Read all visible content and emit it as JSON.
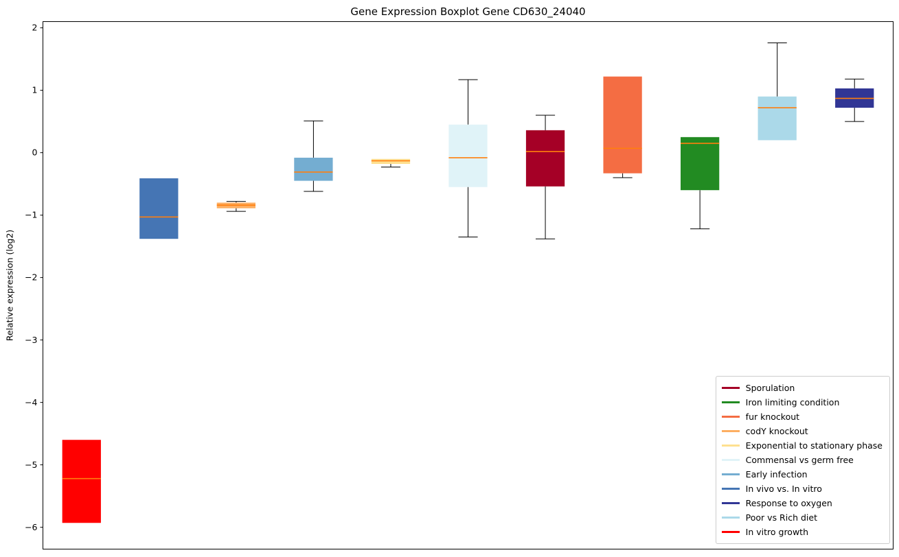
{
  "chart_data": {
    "type": "boxplot",
    "title": "Gene Expression Boxplot Gene CD630_24040",
    "ylabel": "Relative expression (log2)",
    "xlabel": "",
    "ylim": [
      -6.35,
      2.1
    ],
    "yticks": [
      2,
      1,
      0,
      -1,
      -2,
      -3,
      -4,
      -5,
      -6
    ],
    "grid": false,
    "median_color": "#ff7f0e",
    "whisker_color": "#000000",
    "series": [
      {
        "name": "In vitro growth",
        "color": "#ff0000",
        "whislo": -5.93,
        "q1": -5.93,
        "med": -5.22,
        "q3": -4.6,
        "whishi": -4.6
      },
      {
        "name": "In vivo vs. In vitro",
        "color": "#4575b4",
        "whislo": -1.38,
        "q1": -1.38,
        "med": -1.03,
        "q3": -0.41,
        "whishi": -0.41
      },
      {
        "name": "codY knockout",
        "color": "#fdae61",
        "whislo": -0.94,
        "q1": -0.89,
        "med": -0.84,
        "q3": -0.8,
        "whishi": -0.78
      },
      {
        "name": "Early infection",
        "color": "#74add1",
        "whislo": -0.62,
        "q1": -0.45,
        "med": -0.31,
        "q3": -0.08,
        "whishi": 0.51
      },
      {
        "name": "Exponential to stationary phase",
        "color": "#fee090",
        "whislo": -0.23,
        "q1": -0.18,
        "med": -0.13,
        "q3": -0.1,
        "whishi": -0.1
      },
      {
        "name": "Commensal vs germ free",
        "color": "#e0f3f8",
        "whislo": -1.35,
        "q1": -0.55,
        "med": -0.08,
        "q3": 0.45,
        "whishi": 1.17
      },
      {
        "name": "Sporulation",
        "color": "#a50026",
        "whislo": -1.38,
        "q1": -0.54,
        "med": 0.02,
        "q3": 0.36,
        "whishi": 0.6
      },
      {
        "name": "fur knockout",
        "color": "#f46d43",
        "whislo": -0.4,
        "q1": -0.33,
        "med": 0.07,
        "q3": 1.22,
        "whishi": 1.22
      },
      {
        "name": "Iron limiting condition",
        "color": "#228b22",
        "whislo": -1.22,
        "q1": -0.6,
        "med": 0.15,
        "q3": 0.25,
        "whishi": 0.25
      },
      {
        "name": "Poor vs Rich diet",
        "color": "#abd9e9",
        "whislo": 0.2,
        "q1": 0.2,
        "med": 0.72,
        "q3": 0.9,
        "whishi": 1.76
      },
      {
        "name": "Response to oxygen",
        "color": "#313695",
        "whislo": 0.5,
        "q1": 0.72,
        "med": 0.87,
        "q3": 1.03,
        "whishi": 1.18
      }
    ],
    "legend": {
      "position": "lower right",
      "items": [
        {
          "label": "Sporulation",
          "color": "#a50026"
        },
        {
          "label": "Iron limiting condition",
          "color": "#228b22"
        },
        {
          "label": "fur knockout",
          "color": "#f46d43"
        },
        {
          "label": "codY knockout",
          "color": "#fdae61"
        },
        {
          "label": "Exponential to stationary phase",
          "color": "#fee090"
        },
        {
          "label": "Commensal vs germ free",
          "color": "#e0f3f8"
        },
        {
          "label": "Early infection",
          "color": "#74add1"
        },
        {
          "label": "In vivo vs. In vitro",
          "color": "#4575b4"
        },
        {
          "label": "Response to oxygen",
          "color": "#313695"
        },
        {
          "label": "Poor vs Rich diet",
          "color": "#abd9e9"
        },
        {
          "label": "In vitro growth",
          "color": "#ff0000"
        }
      ]
    }
  }
}
